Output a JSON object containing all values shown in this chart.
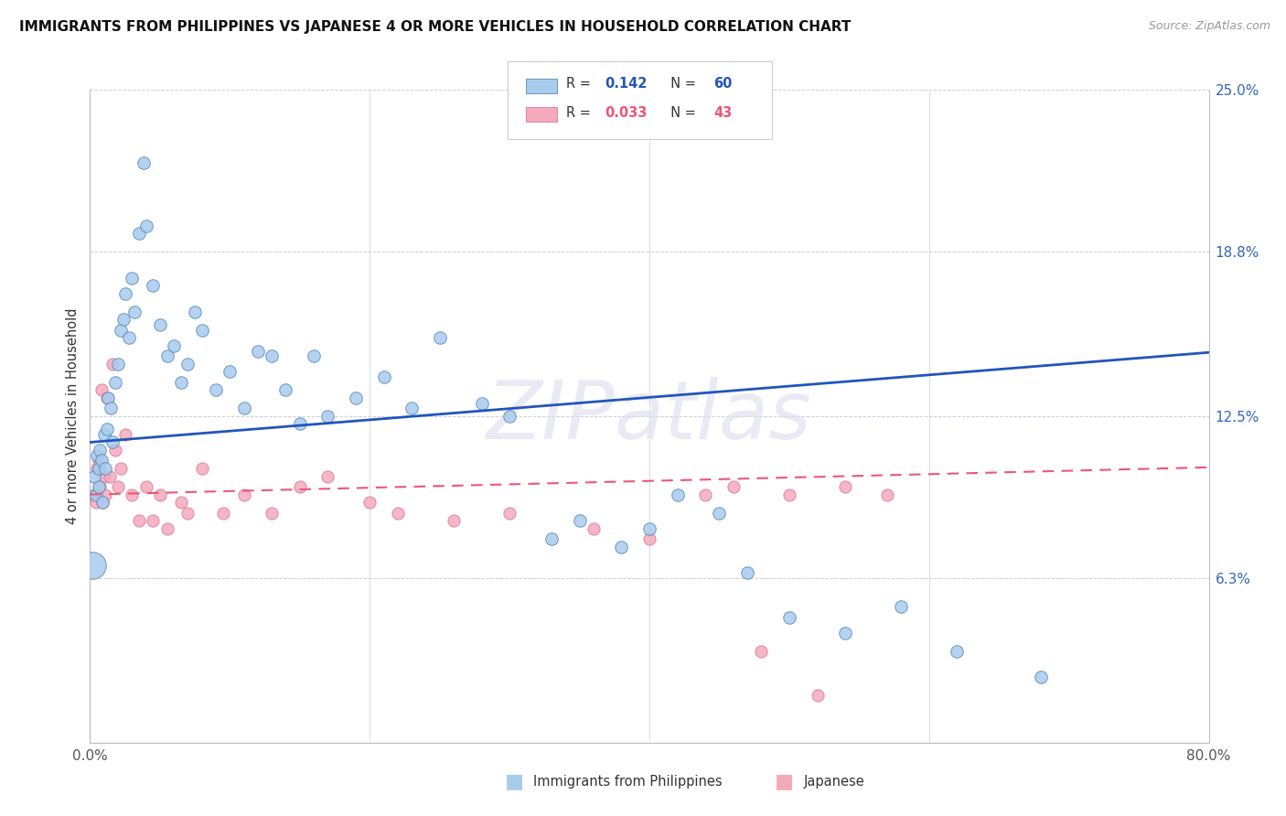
{
  "title": "IMMIGRANTS FROM PHILIPPINES VS JAPANESE 4 OR MORE VEHICLES IN HOUSEHOLD CORRELATION CHART",
  "source": "Source: ZipAtlas.com",
  "xlabel_philippines": "Immigrants from Philippines",
  "xlabel_japanese": "Japanese",
  "ylabel": "4 or more Vehicles in Household",
  "xmin": 0.0,
  "xmax": 80.0,
  "ymin": 0.0,
  "ymax": 25.0,
  "ytick_vals": [
    6.3,
    12.5,
    18.8,
    25.0
  ],
  "ytick_labels": [
    "6.3%",
    "12.5%",
    "18.8%",
    "25.0%"
  ],
  "blue_color": "#A8CCEE",
  "blue_edge": "#5588BB",
  "pink_color": "#F4AABC",
  "pink_edge": "#DD7799",
  "blue_line_color": "#2255BB",
  "pink_line_color": "#EE5577",
  "blue_r": 0.142,
  "blue_n": 60,
  "pink_r": 0.033,
  "pink_n": 43,
  "blue_intercept": 11.5,
  "blue_slope": 0.043,
  "pink_intercept": 9.5,
  "pink_slope": 0.013,
  "blue_x": [
    0.3,
    0.4,
    0.5,
    0.6,
    0.6,
    0.7,
    0.8,
    0.9,
    1.0,
    1.1,
    1.2,
    1.3,
    1.5,
    1.6,
    1.8,
    2.0,
    2.2,
    2.4,
    2.5,
    2.8,
    3.0,
    3.2,
    3.5,
    3.8,
    4.0,
    4.5,
    5.0,
    5.5,
    6.0,
    6.5,
    7.0,
    7.5,
    8.0,
    9.0,
    10.0,
    11.0,
    12.0,
    13.0,
    14.0,
    15.0,
    16.0,
    17.0,
    19.0,
    21.0,
    23.0,
    25.0,
    28.0,
    30.0,
    33.0,
    35.0,
    38.0,
    40.0,
    42.0,
    45.0,
    47.0,
    50.0,
    54.0,
    58.0,
    62.0,
    68.0
  ],
  "blue_y": [
    10.2,
    9.5,
    11.0,
    9.8,
    10.5,
    11.2,
    10.8,
    9.2,
    11.8,
    10.5,
    12.0,
    13.2,
    12.8,
    11.5,
    13.8,
    14.5,
    15.8,
    16.2,
    17.2,
    15.5,
    17.8,
    16.5,
    19.5,
    22.2,
    19.8,
    17.5,
    16.0,
    14.8,
    15.2,
    13.8,
    14.5,
    16.5,
    15.8,
    13.5,
    14.2,
    12.8,
    15.0,
    14.8,
    13.5,
    12.2,
    14.8,
    12.5,
    13.2,
    14.0,
    12.8,
    15.5,
    13.0,
    12.5,
    7.8,
    8.5,
    7.5,
    8.2,
    9.5,
    8.8,
    6.5,
    4.8,
    4.2,
    5.2,
    3.5,
    2.5
  ],
  "pink_x": [
    0.3,
    0.4,
    0.5,
    0.6,
    0.7,
    0.8,
    0.9,
    1.0,
    1.1,
    1.2,
    1.4,
    1.6,
    1.8,
    2.0,
    2.2,
    2.5,
    3.0,
    3.5,
    4.0,
    4.5,
    5.0,
    5.5,
    6.5,
    7.0,
    8.0,
    9.5,
    11.0,
    13.0,
    15.0,
    17.0,
    20.0,
    22.0,
    26.0,
    30.0,
    36.0,
    40.0,
    44.0,
    46.0,
    48.0,
    50.0,
    52.0,
    54.0,
    57.0
  ],
  "pink_y": [
    9.5,
    9.2,
    10.5,
    10.8,
    9.8,
    13.5,
    9.2,
    10.2,
    9.5,
    13.2,
    10.2,
    14.5,
    11.2,
    9.8,
    10.5,
    11.8,
    9.5,
    8.5,
    9.8,
    8.5,
    9.5,
    8.2,
    9.2,
    8.8,
    10.5,
    8.8,
    9.5,
    8.8,
    9.8,
    10.2,
    9.2,
    8.8,
    8.5,
    8.8,
    8.2,
    7.8,
    9.5,
    9.8,
    3.5,
    9.5,
    1.8,
    9.8,
    9.5
  ],
  "watermark": "ZIPatlas",
  "large_blue_x": 0.2,
  "large_blue_y": 6.8,
  "large_blue_size": 450
}
